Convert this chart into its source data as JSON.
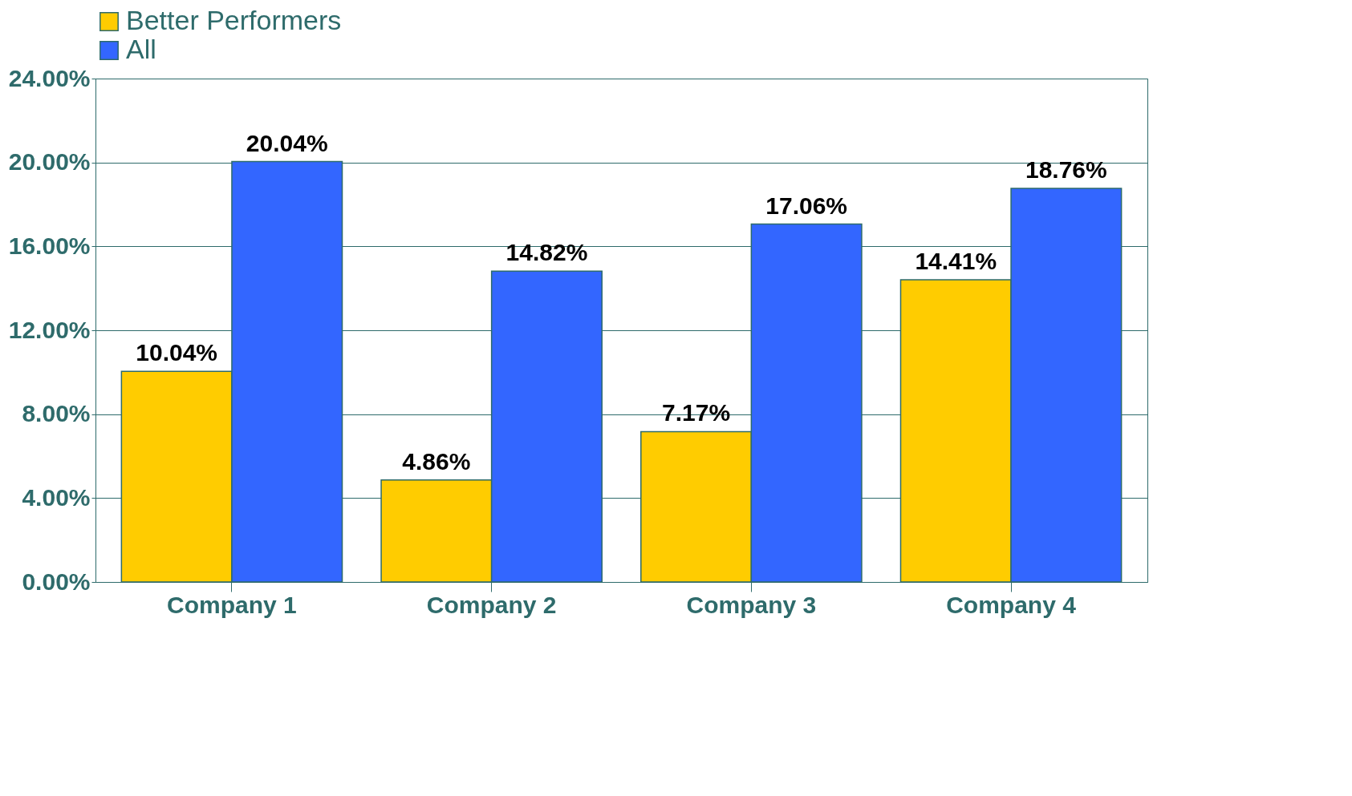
{
  "chart_data": {
    "type": "bar",
    "categories": [
      "Company 1",
      "Company 2",
      "Company 3",
      "Company 4"
    ],
    "series": [
      {
        "name": "Better Performers",
        "color": "#ffcc00",
        "values": [
          10.04,
          4.86,
          7.17,
          14.41
        ],
        "value_labels": [
          "10.04%",
          "4.86%",
          "7.17%",
          "14.41%"
        ]
      },
      {
        "name": "All",
        "color": "#3366ff",
        "values": [
          20.04,
          14.82,
          17.06,
          18.76
        ],
        "value_labels": [
          "20.04%",
          "14.82%",
          "17.06%",
          "18.76%"
        ]
      }
    ],
    "ylim": [
      0,
      24
    ],
    "yticks": [
      {
        "value": 0,
        "label": "0.00%"
      },
      {
        "value": 4,
        "label": "4.00%"
      },
      {
        "value": 8,
        "label": "8.00%"
      },
      {
        "value": 12,
        "label": "12.00%"
      },
      {
        "value": 16,
        "label": "16.00%"
      },
      {
        "value": 20,
        "label": "20.00%"
      },
      {
        "value": 24,
        "label": "24.00%"
      }
    ],
    "grid": "y",
    "legend": "top"
  }
}
